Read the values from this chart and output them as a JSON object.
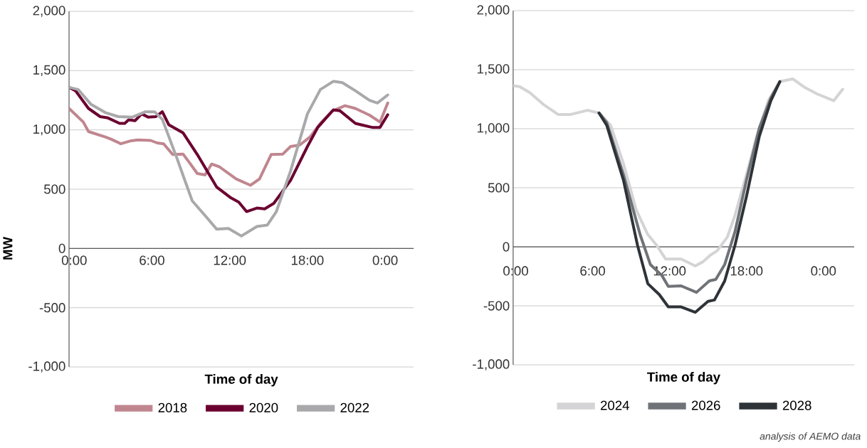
{
  "chart_data": [
    {
      "type": "line",
      "xlabel": "Time of day",
      "ylabel": "MW",
      "xlim": [
        -0.4,
        26.2
      ],
      "ylim": [
        -1000,
        2000
      ],
      "xticks": [
        {
          "value": 0,
          "label": "0:00"
        },
        {
          "value": 6,
          "label": "6:00"
        },
        {
          "value": 12,
          "label": "12:00"
        },
        {
          "value": 18,
          "label": "18:00"
        },
        {
          "value": 24,
          "label": "0:00"
        }
      ],
      "yticks": [
        {
          "value": -1000,
          "label": "-1,000"
        },
        -500,
        0,
        500,
        {
          "value": 1000,
          "label": "1,000"
        },
        {
          "value": 1500,
          "label": "1,500"
        },
        {
          "value": 2000,
          "label": "2,000"
        }
      ],
      "grid": "y",
      "legend": "bottom",
      "marker": "none",
      "line_style": "solid",
      "series": [
        {
          "name": "2018",
          "color": "#c0868f",
          "x": [
            -0.4,
            0.7,
            1.1,
            2.4,
            2.8,
            3.6,
            4.3,
            4.9,
            5.9,
            6.4,
            6.9,
            7.6,
            8.4,
            8.9,
            9.5,
            10.1,
            10.6,
            11.2,
            12.5,
            13.6,
            14.3,
            15.2,
            16.1,
            16.7,
            17.4,
            18.2,
            19.0,
            19.9,
            20.9,
            21.7,
            22.8,
            23.6,
            24.2
          ],
          "values": [
            1181,
            1066,
            986,
            940,
            924,
            883,
            906,
            915,
            911,
            890,
            883,
            792,
            796,
            723,
            632,
            620,
            712,
            689,
            586,
            533,
            586,
            792,
            796,
            860,
            872,
            940,
            1055,
            1158,
            1204,
            1181,
            1124,
            1066,
            1227
          ]
        },
        {
          "name": "2020",
          "color": "#6b0030",
          "x": [
            -0.4,
            0.1,
            1.1,
            2.0,
            2.6,
            3.5,
            3.9,
            4.2,
            4.7,
            5.2,
            5.7,
            6.3,
            6.8,
            7.3,
            8.4,
            9.5,
            11.0,
            12.1,
            12.7,
            13.3,
            14.1,
            14.7,
            15.4,
            16.7,
            18.0,
            18.8,
            20.0,
            20.5,
            21.7,
            23.0,
            23.6,
            24.2
          ],
          "values": [
            1359,
            1330,
            1181,
            1112,
            1101,
            1055,
            1055,
            1085,
            1078,
            1135,
            1108,
            1112,
            1153,
            1043,
            975,
            792,
            517,
            426,
            391,
            311,
            341,
            334,
            380,
            574,
            860,
            1021,
            1169,
            1162,
            1055,
            1021,
            1021,
            1128
          ]
        },
        {
          "name": "2022",
          "color": "#a9a9ab",
          "x": [
            -0.4,
            0.3,
            1.3,
            2.4,
            3.4,
            4.5,
            5.5,
            6.2,
            6.8,
            7.9,
            9.1,
            10.2,
            11.0,
            11.9,
            12.9,
            14.1,
            14.9,
            15.6,
            16.7,
            18.0,
            19.0,
            20.0,
            20.7,
            21.7,
            22.8,
            23.4,
            24.2
          ],
          "values": [
            1359,
            1341,
            1215,
            1146,
            1112,
            1108,
            1153,
            1153,
            1089,
            769,
            403,
            265,
            162,
            169,
            105,
            185,
            197,
            311,
            654,
            1135,
            1341,
            1410,
            1398,
            1330,
            1249,
            1227,
            1295
          ]
        }
      ]
    },
    {
      "type": "line",
      "xlabel": "Time of day",
      "xlim": [
        -0.2,
        26.4
      ],
      "ylim": [
        -1000,
        2000
      ],
      "xticks": [
        {
          "value": 0,
          "label": "0:00"
        },
        {
          "value": 6,
          "label": "6:00"
        },
        {
          "value": 12,
          "label": "12:00"
        },
        {
          "value": 18,
          "label": "18:00"
        },
        {
          "value": 24,
          "label": "0:00"
        }
      ],
      "yticks": [
        {
          "value": -1000,
          "label": "-1,000"
        },
        -500,
        0,
        500,
        {
          "value": 1000,
          "label": "1,000"
        },
        {
          "value": 1500,
          "label": "1,500"
        },
        {
          "value": 2000,
          "label": "2,000"
        }
      ],
      "grid": "y",
      "legend": "bottom",
      "marker": "none",
      "line_style": "solid",
      "annotations": [
        "analysis of AEMO data"
      ],
      "series": [
        {
          "name": "2024",
          "color": "#d4d4d6",
          "x": [
            -0.2,
            0.3,
            1.1,
            2.2,
            3.3,
            4.3,
            5.6,
            6.5,
            7.4,
            8.4,
            9.4,
            10.3,
            11.0,
            11.7,
            12.9,
            14.0,
            14.6,
            15.2,
            15.7,
            16.5,
            17.1,
            18.0,
            18.8,
            19.7,
            20.6,
            21.6,
            22.5,
            23.5,
            24.8,
            25.5
          ],
          "values": [
            1364,
            1357,
            1306,
            1202,
            1121,
            1121,
            1156,
            1133,
            1029,
            705,
            312,
            104,
            12,
            -104,
            -104,
            -162,
            -127,
            -69,
            -35,
            81,
            266,
            613,
            936,
            1237,
            1399,
            1422,
            1353,
            1295,
            1237,
            1334
          ]
        },
        {
          "name": "2026",
          "color": "#6f7378",
          "x": [
            6.5,
            7.1,
            8.4,
            9.7,
            10.5,
            11.4,
            11.9,
            12.9,
            14.1,
            15.1,
            15.6,
            16.3,
            17.1,
            18.0,
            19.0,
            19.9,
            20.6
          ],
          "values": [
            1133,
            1052,
            613,
            104,
            -150,
            -243,
            -335,
            -331,
            -386,
            -289,
            -277,
            -150,
            127,
            566,
            1006,
            1260,
            1399
          ]
        },
        {
          "name": "2028",
          "color": "#2e3338",
          "x": [
            6.5,
            7.1,
            8.4,
            9.5,
            10.3,
            11.2,
            11.9,
            12.9,
            14.0,
            15.0,
            15.5,
            16.3,
            17.1,
            18.0,
            19.0,
            19.9,
            20.6
          ],
          "values": [
            1133,
            1029,
            566,
            12,
            -312,
            -405,
            -509,
            -509,
            -555,
            -462,
            -451,
            -289,
            12,
            428,
            936,
            1237,
            1399
          ]
        }
      ]
    }
  ]
}
